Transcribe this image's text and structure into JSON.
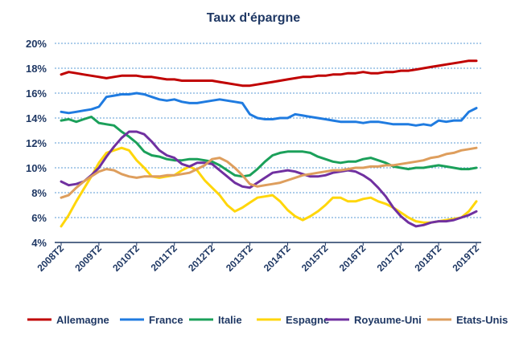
{
  "chart_data": {
    "type": "line",
    "title": "Taux d'épargne",
    "y_ticks": [
      "4%",
      "6%",
      "8%",
      "10%",
      "12%",
      "14%",
      "16%",
      "18%",
      "20%"
    ],
    "ylim": [
      4,
      20
    ],
    "x_ticks": [
      "2008T2",
      "2009T2",
      "2010T2",
      "2011T2",
      "2012T2",
      "2013T2",
      "2014T2",
      "2015T2",
      "2016T2",
      "2017T2",
      "2018T2",
      "2019T2"
    ],
    "grid": true,
    "legend_position": "bottom",
    "series": [
      {
        "name": "Allemagne",
        "color": "#C00000",
        "values": [
          17.5,
          17.7,
          17.6,
          17.5,
          17.4,
          17.3,
          17.2,
          17.3,
          17.4,
          17.4,
          17.4,
          17.3,
          17.3,
          17.2,
          17.1,
          17.1,
          17.0,
          17.0,
          17.0,
          17.0,
          17.0,
          16.9,
          16.8,
          16.7,
          16.6,
          16.6,
          16.7,
          16.8,
          16.9,
          17.0,
          17.1,
          17.2,
          17.3,
          17.3,
          17.4,
          17.4,
          17.5,
          17.5,
          17.6,
          17.6,
          17.7,
          17.6,
          17.6,
          17.7,
          17.7,
          17.8,
          17.8,
          17.9,
          18.0,
          18.1,
          18.2,
          18.3,
          18.4,
          18.5,
          18.6,
          18.6
        ]
      },
      {
        "name": "France",
        "color": "#1F7BE0",
        "values": [
          14.5,
          14.4,
          14.5,
          14.6,
          14.7,
          14.9,
          15.7,
          15.8,
          15.9,
          15.9,
          16.0,
          15.9,
          15.7,
          15.5,
          15.4,
          15.5,
          15.3,
          15.2,
          15.2,
          15.3,
          15.4,
          15.5,
          15.4,
          15.3,
          15.2,
          14.3,
          14.0,
          13.9,
          13.9,
          14.0,
          14.0,
          14.3,
          14.2,
          14.1,
          14.0,
          13.9,
          13.8,
          13.7,
          13.7,
          13.7,
          13.6,
          13.7,
          13.7,
          13.6,
          13.5,
          13.5,
          13.5,
          13.4,
          13.5,
          13.4,
          13.8,
          13.7,
          13.8,
          13.8,
          14.5,
          14.8
        ]
      },
      {
        "name": "Italie",
        "color": "#1BA05A",
        "values": [
          13.8,
          13.9,
          13.7,
          13.9,
          14.1,
          13.6,
          13.5,
          13.4,
          12.9,
          12.5,
          12.0,
          11.3,
          11.0,
          10.9,
          10.7,
          10.6,
          10.6,
          10.7,
          10.7,
          10.6,
          10.5,
          10.2,
          9.8,
          9.4,
          9.3,
          9.4,
          9.9,
          10.5,
          11.0,
          11.2,
          11.3,
          11.3,
          11.3,
          11.2,
          10.9,
          10.7,
          10.5,
          10.4,
          10.5,
          10.5,
          10.7,
          10.8,
          10.6,
          10.4,
          10.1,
          10.0,
          9.9,
          10.0,
          10.0,
          10.1,
          10.2,
          10.1,
          10.0,
          9.9,
          9.9,
          10.0
        ]
      },
      {
        "name": "Espagne",
        "color": "#FFD60A",
        "values": [
          5.3,
          6.2,
          7.3,
          8.3,
          9.3,
          10.4,
          11.2,
          11.4,
          11.6,
          11.4,
          10.6,
          10.0,
          9.3,
          9.2,
          9.3,
          9.4,
          9.8,
          10.1,
          9.8,
          9.0,
          8.4,
          7.8,
          7.0,
          6.5,
          6.8,
          7.2,
          7.6,
          7.7,
          7.8,
          7.3,
          6.6,
          6.1,
          5.8,
          6.1,
          6.5,
          7.0,
          7.6,
          7.6,
          7.3,
          7.3,
          7.5,
          7.6,
          7.3,
          7.1,
          6.8,
          6.4,
          6.0,
          5.7,
          5.6,
          5.6,
          5.7,
          5.8,
          5.9,
          6.0,
          6.5,
          7.3
        ]
      },
      {
        "name": "Royaume-Uni",
        "color": "#7030A0",
        "values": [
          8.9,
          8.6,
          8.7,
          8.9,
          9.4,
          10.0,
          10.9,
          11.7,
          12.4,
          12.9,
          12.9,
          12.7,
          12.1,
          11.4,
          11.0,
          10.8,
          10.3,
          10.1,
          10.4,
          10.4,
          10.3,
          9.8,
          9.3,
          8.8,
          8.5,
          8.4,
          8.8,
          9.2,
          9.6,
          9.7,
          9.8,
          9.7,
          9.5,
          9.3,
          9.3,
          9.4,
          9.6,
          9.7,
          9.8,
          9.7,
          9.4,
          9.0,
          8.4,
          7.7,
          6.8,
          6.1,
          5.6,
          5.3,
          5.4,
          5.6,
          5.7,
          5.7,
          5.8,
          6.0,
          6.2,
          6.5
        ]
      },
      {
        "name": "Etats-Unis",
        "color": "#DE9E5D",
        "values": [
          7.6,
          7.8,
          8.4,
          8.9,
          9.3,
          9.7,
          9.9,
          9.8,
          9.5,
          9.3,
          9.2,
          9.3,
          9.3,
          9.3,
          9.4,
          9.4,
          9.5,
          9.6,
          9.9,
          10.2,
          10.7,
          10.8,
          10.5,
          10.0,
          9.4,
          8.7,
          8.5,
          8.6,
          8.7,
          8.8,
          9.0,
          9.2,
          9.4,
          9.5,
          9.6,
          9.7,
          9.8,
          9.8,
          9.9,
          10.0,
          10.0,
          10.1,
          10.1,
          10.2,
          10.2,
          10.3,
          10.4,
          10.5,
          10.6,
          10.8,
          10.9,
          11.1,
          11.2,
          11.4,
          11.5,
          11.6
        ]
      }
    ]
  }
}
